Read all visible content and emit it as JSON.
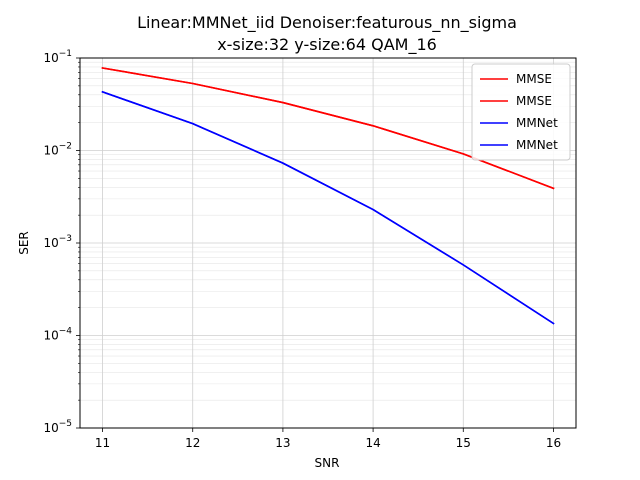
{
  "chart_data": {
    "type": "line",
    "title_lines": [
      "Linear:MMNet_iid Denoiser:featurous_nn_sigma",
      "x-size:32 y-size:64 QAM_16"
    ],
    "xlabel": "SNR",
    "ylabel": "SER",
    "x": [
      11,
      12,
      13,
      14,
      15,
      16
    ],
    "xlim": [
      10.75,
      16.25
    ],
    "ylim": [
      1e-05,
      0.1
    ],
    "yscale": "log",
    "x_ticks": [
      11,
      12,
      13,
      14,
      15,
      16
    ],
    "x_tick_labels": [
      "11",
      "12",
      "13",
      "14",
      "15",
      "16"
    ],
    "y_ticks": [
      {
        "base": "10",
        "exp": "−5",
        "value": 1e-05
      },
      {
        "base": "10",
        "exp": "−4",
        "value": 0.0001
      },
      {
        "base": "10",
        "exp": "−3",
        "value": 0.001
      },
      {
        "base": "10",
        "exp": "−2",
        "value": 0.01
      },
      {
        "base": "10",
        "exp": "−1",
        "value": 0.1
      }
    ],
    "grid": true,
    "legend_position": "top-right",
    "series": [
      {
        "name": "MMSE",
        "color": "#ff0000",
        "values": [
          0.078,
          0.053,
          0.033,
          0.0185,
          0.0092,
          0.0039
        ]
      },
      {
        "name": "MMSE",
        "color": "#ff0000",
        "values": [
          0.078,
          0.053,
          0.033,
          0.0185,
          0.0092,
          0.0039
        ]
      },
      {
        "name": "MMNet",
        "color": "#0000ff",
        "values": [
          0.043,
          0.0195,
          0.0073,
          0.0023,
          0.00058,
          0.000135
        ]
      },
      {
        "name": "MMNet",
        "color": "#0000ff",
        "values": [
          0.043,
          0.0195,
          0.0073,
          0.0023,
          0.00058,
          0.000135
        ]
      }
    ]
  }
}
